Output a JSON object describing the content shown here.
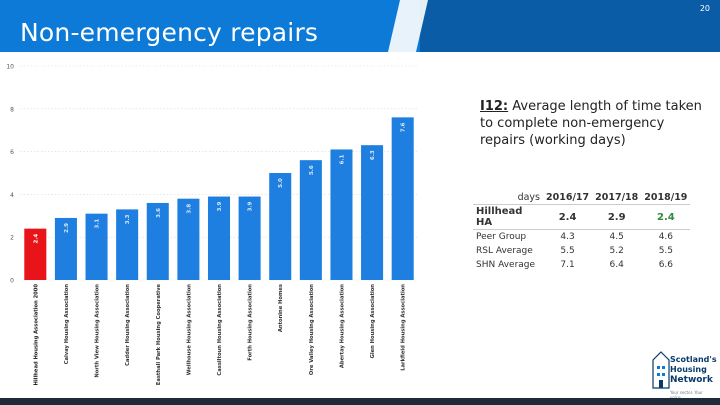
{
  "header": {
    "title": "Non-emergency repairs",
    "page_number": "20",
    "colors": {
      "header_blue": "#0c7ad6",
      "header_dark": "#0a5ca6"
    }
  },
  "description": {
    "code": "I12:",
    "text": "Average length of time taken to complete non-emergency repairs (working days)"
  },
  "stats_table": {
    "unit_label": "days",
    "columns": [
      "2016/17",
      "2017/18",
      "2018/19"
    ],
    "rows": [
      {
        "label": "Hillhead HA",
        "values": [
          "2.4",
          "2.9",
          "2.4"
        ],
        "colors": [
          "#333333",
          "#333333",
          "#2e8b3a"
        ]
      },
      {
        "label": "Peer Group",
        "values": [
          "4.3",
          "4.5",
          "4.6"
        ]
      },
      {
        "label": "RSL Average",
        "values": [
          "5.5",
          "5.2",
          "5.5"
        ]
      },
      {
        "label": "SHN Average",
        "values": [
          "7.1",
          "6.4",
          "6.6"
        ]
      }
    ]
  },
  "chart_data": {
    "type": "bar",
    "categories": [
      "Hillhead Housing Association 2000",
      "Calvay Housing Association",
      "North View Housing Association",
      "Cadder Housing Association",
      "Easthall Park Housing Cooperative",
      "Wellhouse Housing Association",
      "Cassiltoun Housing Association",
      "Forth Housing Association",
      "Antonine Homes",
      "Ore Valley Housing Association",
      "Abertay Housing Association",
      "Glen Housing Association",
      "Larkfield Housing Association"
    ],
    "values": [
      2.4,
      2.9,
      3.1,
      3.3,
      3.6,
      3.8,
      3.9,
      3.9,
      5.0,
      5.6,
      6.1,
      6.3,
      7.6
    ],
    "data_labels": [
      "2.4",
      "2.9",
      "3.1",
      "3.3",
      "3.6",
      "3.8",
      "3.9",
      "3.9",
      "5.0",
      "5.6",
      "6.1",
      "6.3",
      "7.6"
    ],
    "highlight_index": 0,
    "bar_color": "#1f7fe0",
    "highlight_color": "#e8141a",
    "y_ticks": [
      "0",
      "2",
      "4",
      "6",
      "8",
      "10"
    ],
    "ylim": [
      0,
      10
    ],
    "grid": true,
    "title": "",
    "xlabel": "",
    "ylabel": ""
  },
  "logo": {
    "lines": [
      "Scotland's",
      "Housing",
      "Network"
    ],
    "tagline": "Your sector. Your voice"
  }
}
